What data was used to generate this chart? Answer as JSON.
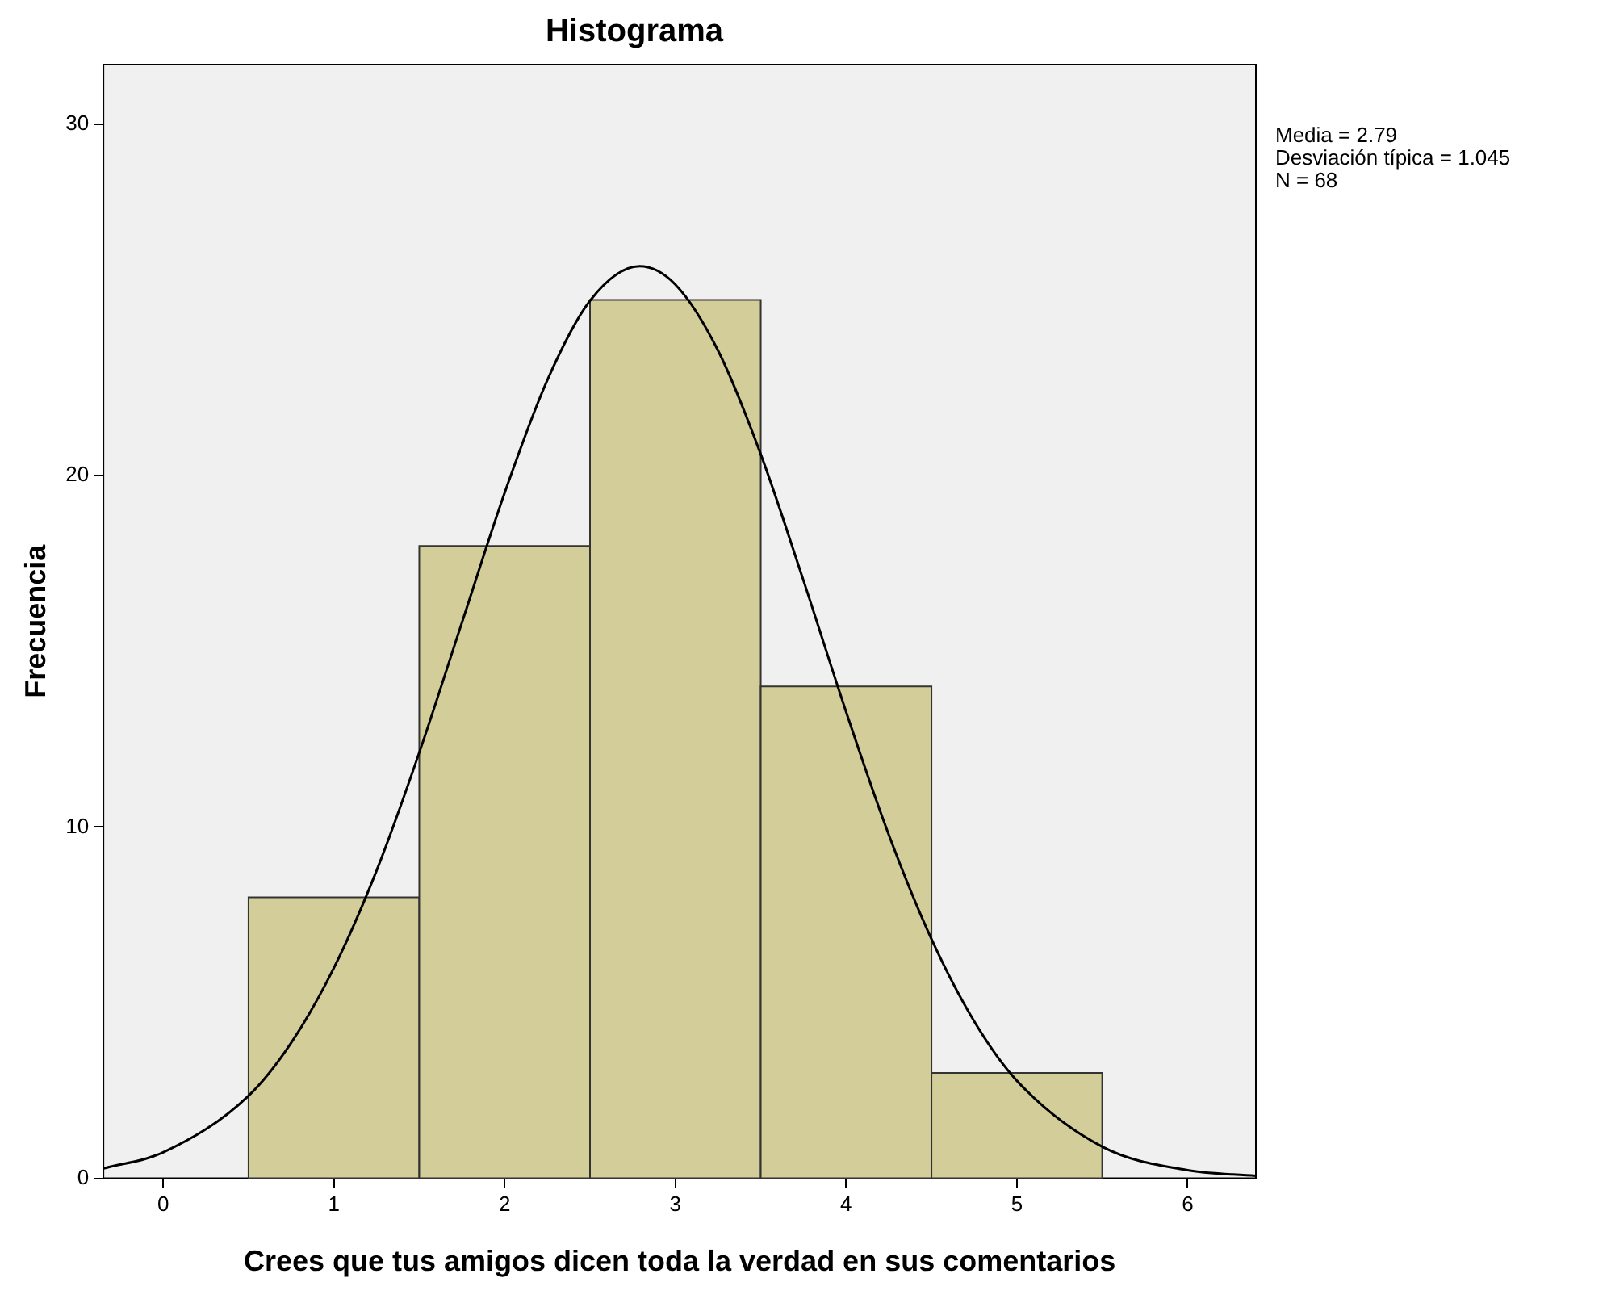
{
  "chart_data": {
    "type": "histogram",
    "title": "Histograma",
    "xlabel": "Crees que tus amigos dicen toda la verdad en sus comentarios",
    "ylabel": "Frecuencia",
    "bins": [
      0.5,
      1.5,
      2.5,
      3.5,
      4.5,
      5.5
    ],
    "values": [
      8,
      18,
      25,
      14,
      3
    ],
    "color": "#d3ce99",
    "series": [
      {
        "type": "line",
        "color": "#000000",
        "x": [
          -0.35,
          0,
          0.5,
          0.75,
          1,
          1.25,
          1.5,
          1.75,
          2,
          2.25,
          2.5,
          2.79,
          3,
          3.25,
          3.5,
          3.75,
          4,
          4.25,
          4.5,
          4.75,
          5,
          5.5,
          6,
          6.4
        ],
        "values": [
          0.28,
          0.74,
          2.35,
          3.86,
          5.99,
          8.76,
          12.12,
          15.82,
          19.51,
          22.72,
          24.98,
          25.96,
          25.44,
          23.56,
          20.61,
          17.02,
          13.28,
          9.78,
          6.81,
          4.47,
          2.78,
          0.9,
          0.23,
          0.07
        ]
      }
    ],
    "xlim": [
      -0.35,
      6.4
    ],
    "xticks": [
      0,
      1,
      2,
      3,
      4,
      5,
      6
    ],
    "ylim": [
      0,
      31.7
    ],
    "yticks": [
      0,
      10,
      20,
      30
    ],
    "grid": false,
    "annotations": [
      "Media = 2.79",
      "Desviación típica = 1.045",
      "N = 68"
    ]
  }
}
